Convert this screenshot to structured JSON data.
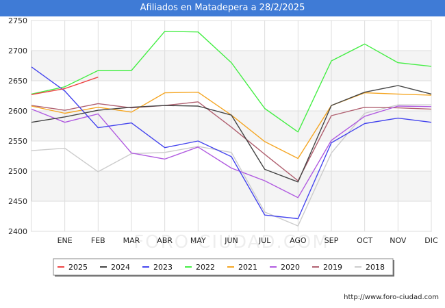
{
  "chart_data": {
    "type": "line",
    "title": "Afiliados en Matadepera a 28/2/2025",
    "xlabel": "",
    "ylabel": "",
    "x": [
      "",
      "ENE",
      "FEB",
      "MAR",
      "ABR",
      "MAY",
      "JUN",
      "JUL",
      "AGO",
      "SEP",
      "OCT",
      "NOV",
      "DIC"
    ],
    "ylim": [
      2400,
      2750
    ],
    "yticks": [
      2400,
      2450,
      2500,
      2550,
      2600,
      2650,
      2700,
      2750
    ],
    "grid": true,
    "legend_position": "bottom",
    "series": [
      {
        "name": "2025",
        "color": "#ee4444",
        "values": [
          2627,
          2637,
          2656,
          null,
          null,
          null,
          null,
          null,
          null,
          null,
          null,
          null,
          null
        ]
      },
      {
        "name": "2024",
        "color": "#444444",
        "values": [
          2581,
          2590,
          2601,
          2606,
          2609,
          2608,
          2593,
          2503,
          2482,
          2609,
          2631,
          2642,
          2628
        ]
      },
      {
        "name": "2023",
        "color": "#4444ee",
        "values": [
          2673,
          2633,
          2572,
          2580,
          2539,
          2550,
          2524,
          2427,
          2421,
          2547,
          2579,
          2588,
          2581
        ]
      },
      {
        "name": "2022",
        "color": "#44ee44",
        "values": [
          2628,
          2640,
          2667,
          2667,
          2732,
          2731,
          2680,
          2604,
          2565,
          2683,
          2711,
          2680,
          2674
        ]
      },
      {
        "name": "2021",
        "color": "#f5a623",
        "values": [
          2608,
          2596,
          2606,
          2598,
          2630,
          2631,
          2593,
          2549,
          2521,
          2609,
          2630,
          2628,
          2626
        ]
      },
      {
        "name": "2020",
        "color": "#b05ae0",
        "values": [
          2603,
          2581,
          2595,
          2530,
          2520,
          2540,
          2505,
          2484,
          2456,
          2551,
          2591,
          2608,
          2607
        ]
      },
      {
        "name": "2019",
        "color": "#b06070",
        "values": [
          2609,
          2601,
          2612,
          2605,
          2609,
          2615,
          2573,
          2528,
          2484,
          2592,
          2606,
          2605,
          2603
        ]
      },
      {
        "name": "2018",
        "color": "#cccccc",
        "values": [
          2534,
          2538,
          2499,
          2529,
          2531,
          2541,
          2531,
          2432,
          2409,
          2530,
          2596,
          2610,
          2610
        ]
      }
    ]
  },
  "watermark": "FORO-CIUDAD.COM",
  "source": "http://www.foro-ciudad.com"
}
